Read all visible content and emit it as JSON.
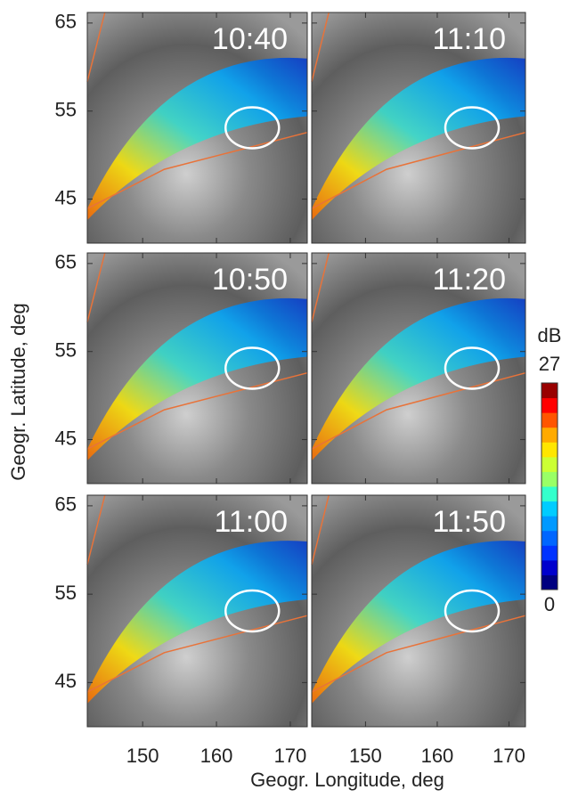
{
  "figure": {
    "y_label": "Geogr. Latitude, deg",
    "x_label": "Geogr. Longitude, deg",
    "xlim": [
      142.5,
      172.3
    ],
    "xticks": [
      150,
      160,
      170
    ],
    "ylim": [
      40,
      66.2
    ],
    "yticks": [
      45,
      55,
      65
    ],
    "panels": [
      {
        "time": "10:40"
      },
      {
        "time": "11:10"
      },
      {
        "time": "10:50"
      },
      {
        "time": "11:20"
      },
      {
        "time": "11:00"
      },
      {
        "time": "11:50"
      }
    ],
    "colorbar": {
      "unit": "dB",
      "lim": [
        0,
        27
      ],
      "colors": [
        "#000080",
        "#0000cd",
        "#0033ff",
        "#0066ff",
        "#0099ff",
        "#00ccff",
        "#33ffcc",
        "#99ff66",
        "#ccff33",
        "#ffe600",
        "#ffaa00",
        "#ff5500",
        "#ff0000",
        "#990000"
      ]
    }
  }
}
